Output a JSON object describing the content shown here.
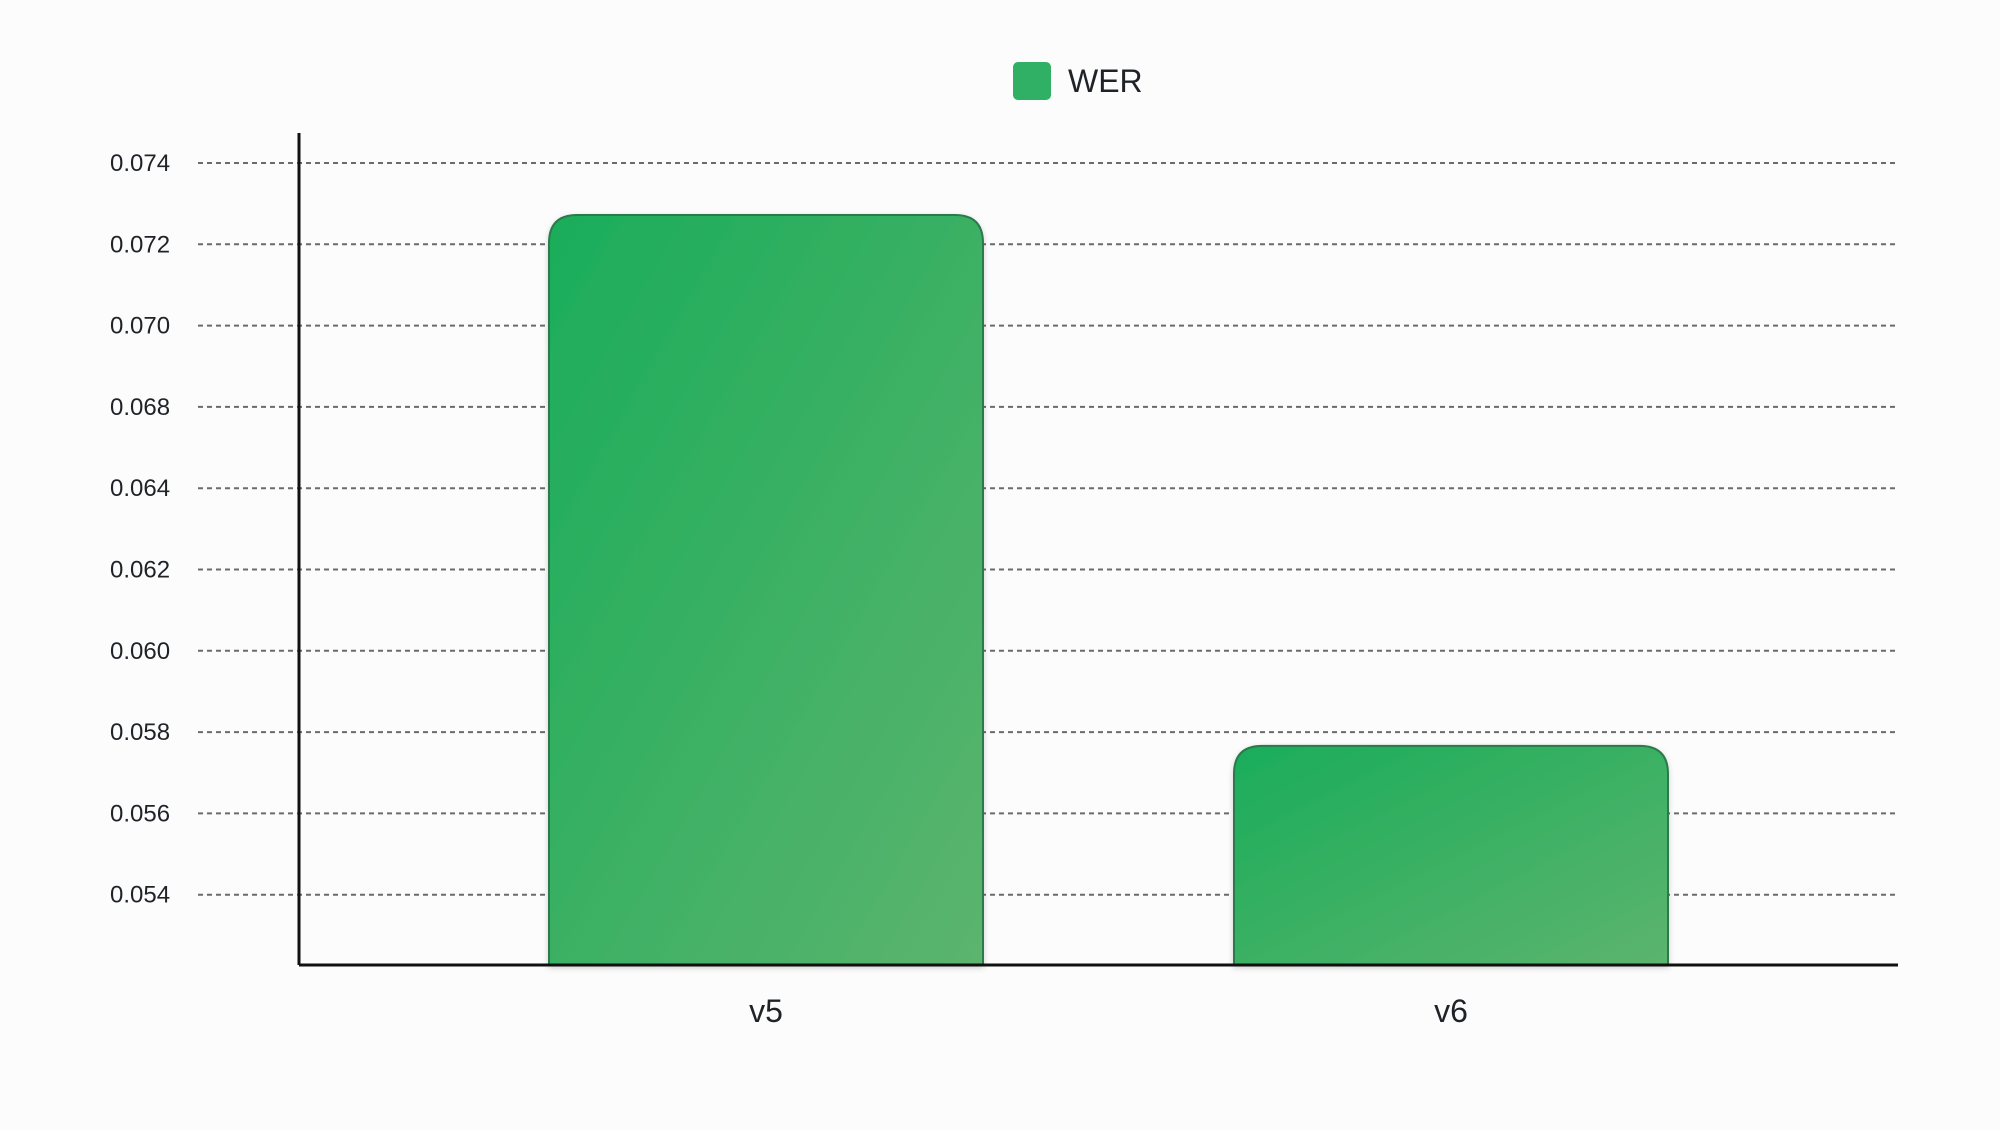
{
  "chart_data": {
    "type": "bar",
    "categories": [
      "v5",
      "v6"
    ],
    "series": [
      {
        "name": "WER",
        "values": [
          0.0726,
          0.0583
        ]
      }
    ],
    "yticks": [
      "0.074",
      "0.072",
      "0.070",
      "0.068",
      "0.064",
      "0.062",
      "0.060",
      "0.058",
      "0.056",
      "0.054"
    ],
    "ylim": [
      0.0524,
      0.074
    ],
    "grid": true,
    "legend_position": "top-center",
    "colors": {
      "bar_light": "#5cb46e",
      "bar_dark": "#1aad5a",
      "bar_stroke": "#2b7a4b",
      "legend_swatch": "#2fb064"
    }
  }
}
